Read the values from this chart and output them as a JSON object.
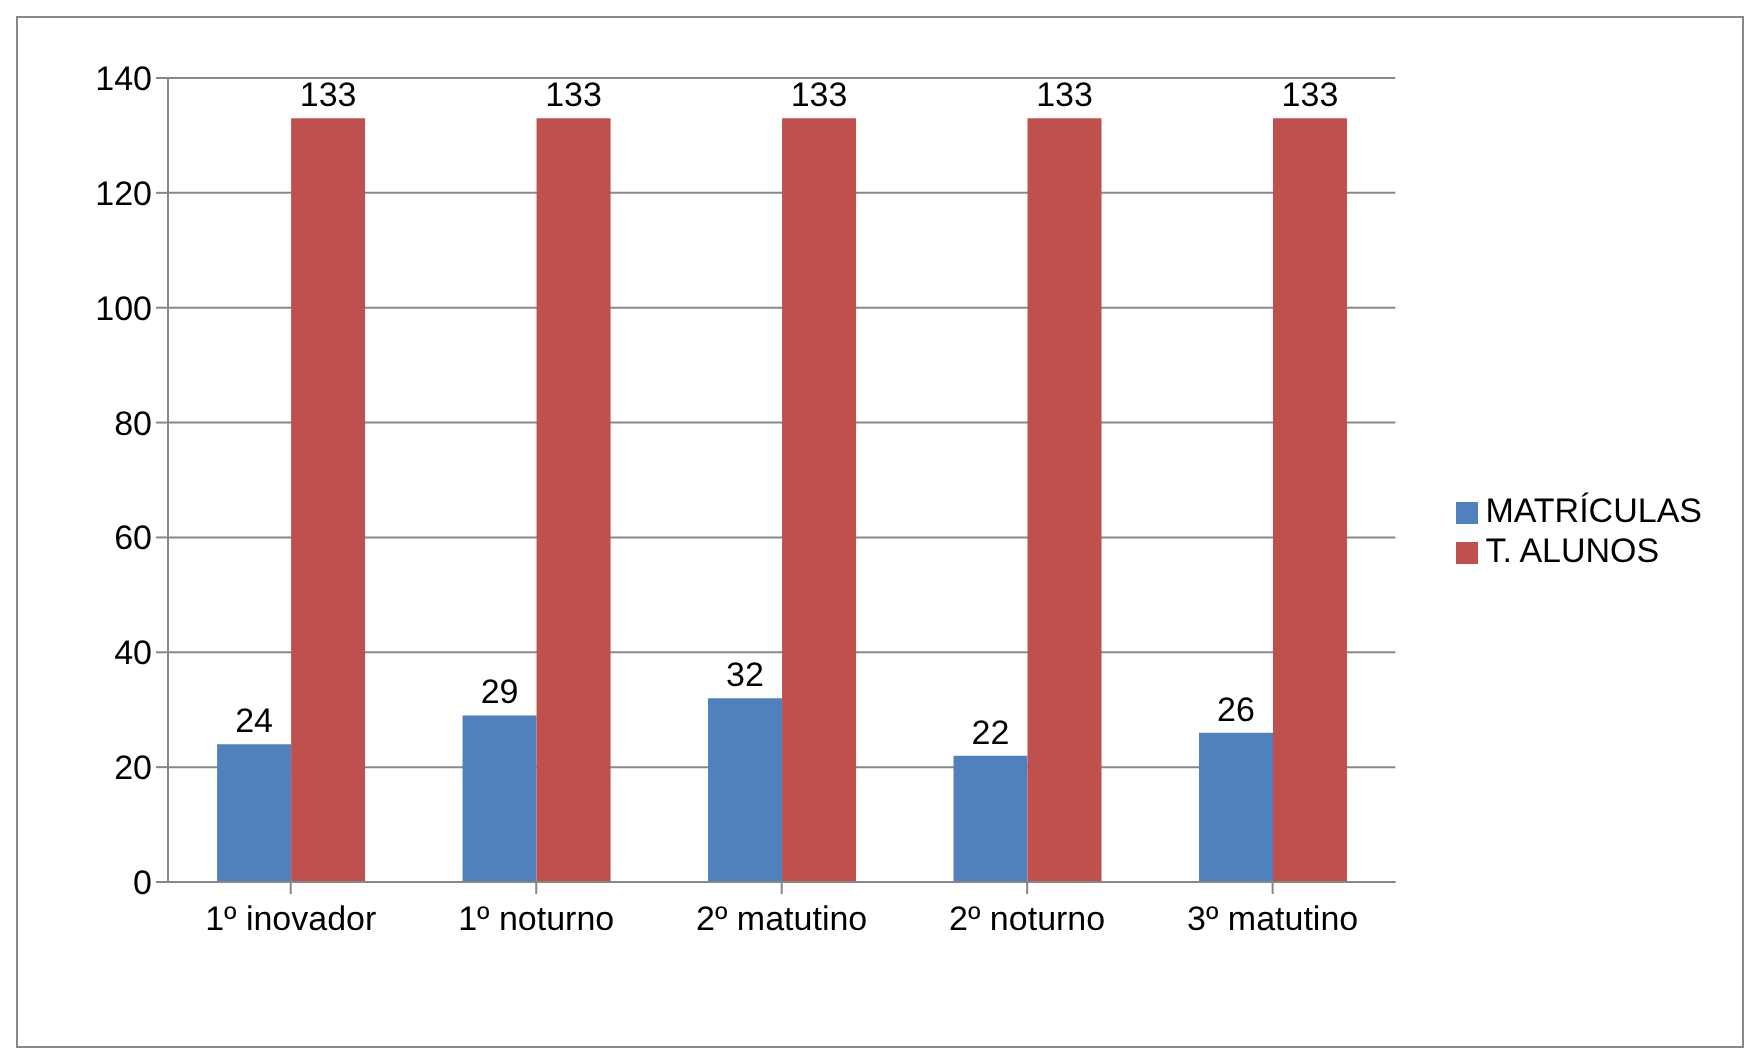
{
  "chart_data": {
    "type": "bar",
    "categories": [
      "1º inovador",
      "1º noturno",
      "2º matutino",
      "2º noturno",
      "3º matutino"
    ],
    "series": [
      {
        "name": "MATRÍCULAS",
        "color": "#4f81bd",
        "values": [
          24,
          29,
          32,
          22,
          26
        ]
      },
      {
        "name": "T. ALUNOS",
        "color": "#c0504d",
        "values": [
          133,
          133,
          133,
          133,
          133
        ]
      }
    ],
    "ylim": [
      0,
      140
    ],
    "yticks": [
      0,
      20,
      40,
      60,
      80,
      100,
      120,
      140
    ],
    "grid": "y",
    "legend": "right",
    "data_labels": true
  }
}
